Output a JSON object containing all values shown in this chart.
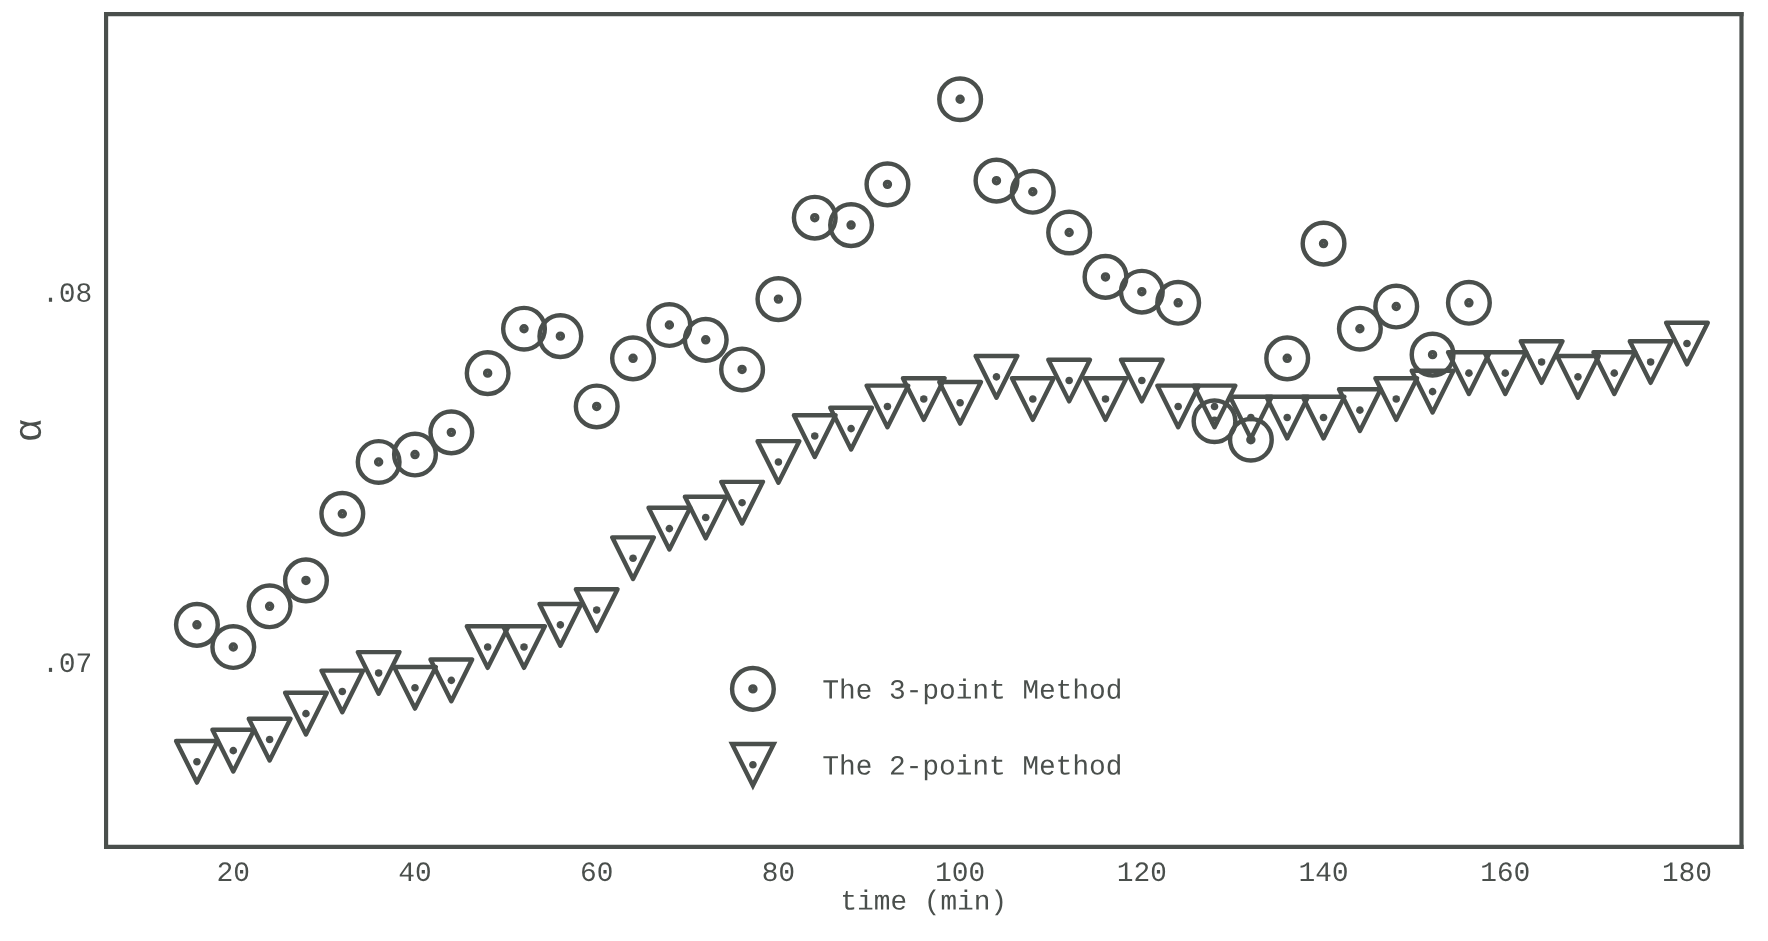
{
  "chart_data": {
    "type": "scatter",
    "xlabel": "time (min)",
    "ylabel": "α",
    "xlim": [
      6,
      186
    ],
    "ylim": [
      0.065,
      0.0875
    ],
    "xticks": [
      20,
      40,
      60,
      80,
      100,
      120,
      140,
      160,
      180
    ],
    "yticks": [
      {
        "value": 0.07,
        "label": ".07"
      },
      {
        "value": 0.08,
        "label": ".08"
      }
    ],
    "grid": false,
    "legend": "bottom",
    "series": [
      {
        "name": "The 3-point Method",
        "color": "#4a4f4c",
        "marker": "circle",
        "x": [
          16,
          20,
          24,
          28,
          32,
          36,
          40,
          44,
          48,
          52,
          56,
          60,
          64,
          68,
          72,
          76,
          80,
          84,
          88,
          92,
          100,
          104,
          108,
          112,
          116,
          120,
          124,
          128,
          132,
          136,
          140,
          144,
          148,
          152,
          156
        ],
        "values": [
          0.071,
          0.0704,
          0.0715,
          0.0722,
          0.074,
          0.0754,
          0.0756,
          0.0762,
          0.0778,
          0.079,
          0.0788,
          0.0769,
          0.0782,
          0.0791,
          0.0787,
          0.0779,
          0.0798,
          0.082,
          0.0818,
          0.0829,
          0.0852,
          0.083,
          0.0827,
          0.0816,
          0.0804,
          0.08,
          0.0797,
          0.0765,
          0.076,
          0.0782,
          0.0813,
          0.079,
          0.0796,
          0.0783,
          0.0797
        ]
      },
      {
        "name": "The 2-point Method",
        "color": "#4a4f4c",
        "marker": "triangle",
        "x": [
          16,
          20,
          24,
          28,
          32,
          36,
          40,
          44,
          48,
          52,
          56,
          60,
          64,
          68,
          72,
          76,
          80,
          84,
          88,
          92,
          96,
          100,
          104,
          108,
          112,
          116,
          120,
          124,
          128,
          132,
          136,
          140,
          144,
          148,
          152,
          156,
          160,
          164,
          168,
          172,
          176,
          180
        ],
        "values": [
          0.0673,
          0.0676,
          0.0679,
          0.0686,
          0.0692,
          0.0697,
          0.0693,
          0.0695,
          0.0704,
          0.0704,
          0.071,
          0.0714,
          0.0728,
          0.0736,
          0.0739,
          0.0743,
          0.0754,
          0.0761,
          0.0763,
          0.0769,
          0.0771,
          0.077,
          0.0777,
          0.0771,
          0.0776,
          0.0771,
          0.0776,
          0.0769,
          0.0769,
          0.0766,
          0.0766,
          0.0766,
          0.0768,
          0.0771,
          0.0773,
          0.0778,
          0.0778,
          0.0781,
          0.0777,
          0.0778,
          0.0781,
          0.0786
        ]
      }
    ]
  }
}
